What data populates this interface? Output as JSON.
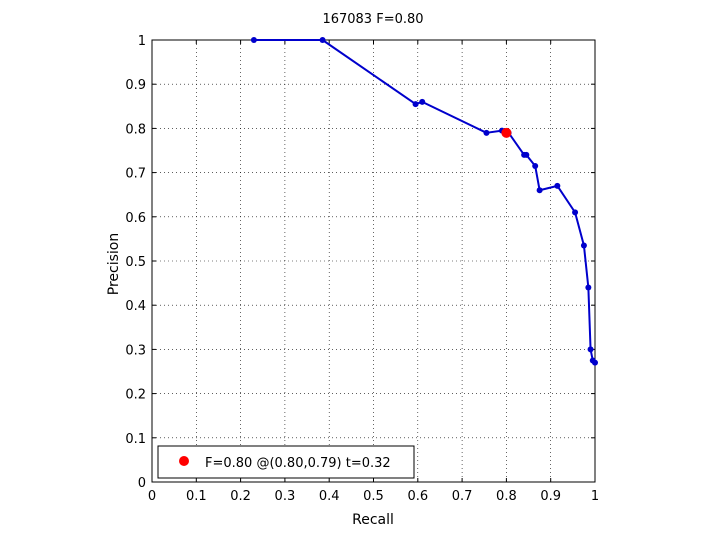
{
  "chart_data": {
    "type": "line",
    "title": "167083 F=0.80",
    "xlabel": "Recall",
    "ylabel": "Precision",
    "xlim": [
      0,
      1
    ],
    "ylim": [
      0,
      1
    ],
    "xticks": [
      0,
      0.1,
      0.2,
      0.3,
      0.4,
      0.5,
      0.6,
      0.7,
      0.8,
      0.9,
      1
    ],
    "yticks": [
      0,
      0.1,
      0.2,
      0.3,
      0.4,
      0.5,
      0.6,
      0.7,
      0.8,
      0.9,
      1
    ],
    "xtick_labels": [
      "0",
      "0.1",
      "0.2",
      "0.3",
      "0.4",
      "0.5",
      "0.6",
      "0.7",
      "0.8",
      "0.9",
      "1"
    ],
    "ytick_labels": [
      "0",
      "0.1",
      "0.2",
      "0.3",
      "0.4",
      "0.5",
      "0.6",
      "0.7",
      "0.8",
      "0.9",
      "1"
    ],
    "grid": true,
    "series": [
      {
        "color": "#0000cc",
        "x": [
          0.23,
          0.385,
          0.595,
          0.61,
          0.755,
          0.79,
          0.805,
          0.84,
          0.845,
          0.865,
          0.875,
          0.915,
          0.955,
          0.975,
          0.985,
          0.99,
          0.995,
          1.0
        ],
        "y": [
          1.0,
          1.0,
          0.855,
          0.86,
          0.79,
          0.795,
          0.79,
          0.74,
          0.74,
          0.715,
          0.66,
          0.67,
          0.61,
          0.535,
          0.44,
          0.3,
          0.275,
          0.27
        ]
      }
    ],
    "highlight_point": {
      "x": 0.8,
      "y": 0.79,
      "color": "#ff0000"
    },
    "legend": {
      "position": "bottom-left",
      "label": "F=0.80 @(0.80,0.79) t=0.32"
    }
  }
}
